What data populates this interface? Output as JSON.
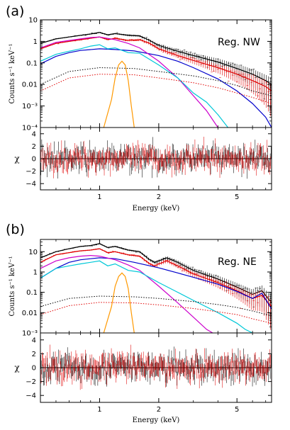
{
  "chart_data": [
    {
      "panel_label": "(a)",
      "region_label": "Reg. NW",
      "type": "line",
      "xlabel": "Energy (keV)",
      "ylabel": "Counts s⁻¹ keV⁻¹",
      "resid_ylabel": "χ",
      "xscale": "log",
      "yscale": "log",
      "xlim": [
        0.5,
        7.5
      ],
      "ylim": [
        0.0001,
        10
      ],
      "x_ticks": [
        1,
        2,
        5
      ],
      "x_tick_labels": [
        "1",
        "2",
        "5"
      ],
      "y_ticks": [
        10,
        1,
        0.1,
        0.01,
        0.001,
        0.0001
      ],
      "y_tick_labels": [
        "10",
        "1",
        "0.1",
        "0.01",
        "10⁻³",
        "10⁻⁴"
      ],
      "resid_ylim": [
        -5,
        5
      ],
      "resid_ticks": [
        4,
        2,
        0,
        -2,
        -4
      ],
      "resid_tick_labels": [
        "4",
        "2",
        "0",
        "−2",
        "−4"
      ],
      "series": [
        {
          "color": "#000000",
          "style": "solid",
          "x": [
            0.5,
            0.6,
            0.7,
            0.8,
            0.9,
            1.0,
            1.1,
            1.2,
            1.4,
            1.6,
            1.8,
            2.0,
            2.5,
            3.0,
            4.0,
            5.0,
            6.0,
            7.0,
            7.5
          ],
          "y": [
            0.8,
            1.3,
            1.6,
            1.9,
            2.2,
            2.6,
            2.0,
            2.3,
            1.9,
            1.8,
            1.1,
            0.65,
            0.35,
            0.22,
            0.11,
            0.055,
            0.03,
            0.015,
            0.01
          ]
        },
        {
          "color": "#e00000",
          "style": "solid",
          "x": [
            0.5,
            0.6,
            0.7,
            0.8,
            0.9,
            1.0,
            1.1,
            1.2,
            1.4,
            1.6,
            1.8,
            2.0,
            2.5,
            3.0,
            4.0,
            5.0,
            6.0,
            7.0,
            7.5
          ],
          "y": [
            0.45,
            0.8,
            1.0,
            1.2,
            1.4,
            1.6,
            1.2,
            1.4,
            1.1,
            1.2,
            0.8,
            0.45,
            0.22,
            0.13,
            0.06,
            0.03,
            0.015,
            0.008,
            0.005
          ]
        },
        {
          "color": "#0000cc",
          "style": "solid",
          "x": [
            0.5,
            0.6,
            0.7,
            0.8,
            1.0,
            1.2,
            1.5,
            2.0,
            2.5,
            3.0,
            4.0,
            5.0,
            6.0,
            7.0,
            7.5
          ],
          "y": [
            0.09,
            0.2,
            0.3,
            0.38,
            0.45,
            0.42,
            0.36,
            0.22,
            0.12,
            0.06,
            0.018,
            0.005,
            0.0013,
            0.0003,
            0.0001
          ]
        },
        {
          "color": "#cc00cc",
          "style": "solid",
          "x": [
            0.5,
            0.6,
            0.7,
            0.8,
            0.9,
            1.0,
            1.2,
            1.4,
            1.6,
            2.0,
            2.5,
            3.0,
            3.5,
            4.0
          ],
          "y": [
            0.5,
            0.9,
            1.1,
            1.3,
            1.5,
            1.6,
            1.2,
            0.8,
            0.5,
            0.12,
            0.02,
            0.003,
            0.0006,
            0.0001
          ]
        },
        {
          "color": "#00c8d8",
          "style": "solid",
          "x": [
            0.5,
            0.6,
            0.7,
            0.8,
            0.9,
            1.0,
            1.1,
            1.2,
            1.4,
            1.6,
            2.0,
            2.5,
            3.0,
            3.5,
            4.0,
            4.5
          ],
          "y": [
            0.12,
            0.25,
            0.35,
            0.45,
            0.6,
            0.7,
            0.45,
            0.5,
            0.3,
            0.28,
            0.08,
            0.02,
            0.004,
            0.0015,
            0.0004,
            0.0001
          ]
        },
        {
          "color": "#000000",
          "style": "dotted",
          "x": [
            0.5,
            0.7,
            1.0,
            1.5,
            2.0,
            3.0,
            4.0,
            5.0,
            6.0,
            7.5
          ],
          "y": [
            0.01,
            0.04,
            0.06,
            0.055,
            0.04,
            0.025,
            0.015,
            0.009,
            0.005,
            0.003
          ]
        },
        {
          "color": "#e00000",
          "style": "dotted",
          "x": [
            0.5,
            0.7,
            1.0,
            1.5,
            2.0,
            3.0,
            4.0,
            5.0,
            6.0,
            7.5
          ],
          "y": [
            0.005,
            0.02,
            0.03,
            0.028,
            0.02,
            0.012,
            0.007,
            0.004,
            0.0025,
            0.0013
          ]
        },
        {
          "color": "#ff9900",
          "style": "solid",
          "x": [
            1.05,
            1.15,
            1.2,
            1.25,
            1.3,
            1.35,
            1.4,
            1.45,
            1.5
          ],
          "y": [
            0.0001,
            0.002,
            0.02,
            0.08,
            0.12,
            0.08,
            0.015,
            0.001,
            0.0001
          ]
        }
      ]
    },
    {
      "panel_label": "(b)",
      "region_label": "Reg. NE",
      "type": "line",
      "xlabel": "Energy (keV)",
      "ylabel": "Counts s⁻¹ keV⁻¹",
      "resid_ylabel": "χ",
      "xscale": "log",
      "yscale": "log",
      "xlim": [
        0.5,
        7.5
      ],
      "ylim": [
        0.001,
        40
      ],
      "x_ticks": [
        1,
        2,
        5
      ],
      "x_tick_labels": [
        "1",
        "2",
        "5"
      ],
      "y_ticks": [
        10,
        1,
        0.1,
        0.01,
        0.001
      ],
      "y_tick_labels": [
        "10",
        "1",
        "0.1",
        "0.01",
        "10⁻³"
      ],
      "resid_ylim": [
        -5,
        5
      ],
      "resid_ticks": [
        4,
        2,
        0,
        -2,
        -4
      ],
      "resid_tick_labels": [
        "4",
        "2",
        "0",
        "−2",
        "−4"
      ],
      "series": [
        {
          "color": "#000000",
          "style": "solid",
          "x": [
            0.5,
            0.6,
            0.7,
            0.8,
            0.9,
            1.0,
            1.1,
            1.2,
            1.4,
            1.6,
            1.8,
            1.9,
            2.0,
            2.2,
            2.5,
            3.0,
            4.0,
            5.0,
            6.0,
            6.7,
            7.5
          ],
          "y": [
            5,
            10,
            14,
            18,
            20,
            25,
            16,
            18,
            12,
            10,
            4,
            3,
            3.5,
            5,
            3,
            1.2,
            0.45,
            0.18,
            0.08,
            0.12,
            0.03
          ]
        },
        {
          "color": "#e00000",
          "style": "solid",
          "x": [
            0.5,
            0.6,
            0.7,
            0.8,
            0.9,
            1.0,
            1.1,
            1.2,
            1.4,
            1.6,
            1.8,
            1.9,
            2.0,
            2.2,
            2.5,
            3.0,
            4.0,
            5.0,
            6.0,
            6.7,
            7.5
          ],
          "y": [
            3,
            7,
            9,
            11,
            12,
            14,
            9,
            10,
            7,
            6,
            2.5,
            2.0,
            2.5,
            3.5,
            2,
            0.8,
            0.3,
            0.12,
            0.05,
            0.07,
            0.02
          ]
        },
        {
          "color": "#0000cc",
          "style": "solid",
          "x": [
            0.5,
            0.6,
            0.7,
            0.8,
            1.0,
            1.2,
            1.5,
            2.0,
            2.5,
            3.0,
            4.0,
            5.0,
            6.0,
            6.7,
            7.5
          ],
          "y": [
            0.5,
            1.5,
            3,
            4,
            5,
            4.5,
            3,
            1.6,
            0.9,
            0.55,
            0.25,
            0.11,
            0.05,
            0.09,
            0.015
          ]
        },
        {
          "color": "#cc00cc",
          "style": "solid",
          "x": [
            0.5,
            0.6,
            0.7,
            0.8,
            0.9,
            1.0,
            1.2,
            1.4,
            1.6,
            2.0,
            2.5,
            3.0,
            3.5,
            4.0
          ],
          "y": [
            1.5,
            3.5,
            5,
            6,
            6.5,
            6,
            4,
            2.2,
            1.2,
            0.2,
            0.03,
            0.006,
            0.0015,
            0.0007
          ]
        },
        {
          "color": "#00c8d8",
          "style": "solid",
          "x": [
            0.5,
            0.6,
            0.7,
            0.8,
            0.9,
            1.0,
            1.1,
            1.2,
            1.4,
            1.6,
            2.0,
            2.5,
            3.0,
            4.0,
            5.0,
            5.5,
            6.0
          ],
          "y": [
            0.5,
            1.5,
            2,
            2.5,
            3,
            3.5,
            2,
            2.5,
            1.2,
            1.0,
            0.3,
            0.1,
            0.04,
            0.01,
            0.003,
            0.0015,
            0.001
          ]
        },
        {
          "color": "#000000",
          "style": "dotted",
          "x": [
            0.5,
            0.7,
            1.0,
            1.5,
            2.0,
            3.0,
            4.0,
            5.0,
            6.0,
            7.5
          ],
          "y": [
            0.02,
            0.05,
            0.065,
            0.06,
            0.05,
            0.035,
            0.025,
            0.018,
            0.012,
            0.007
          ]
        },
        {
          "color": "#e00000",
          "style": "dotted",
          "x": [
            0.5,
            0.7,
            1.0,
            1.5,
            2.0,
            3.0,
            4.0,
            5.0,
            6.0,
            7.5
          ],
          "y": [
            0.008,
            0.022,
            0.032,
            0.03,
            0.024,
            0.016,
            0.011,
            0.008,
            0.005,
            0.003
          ]
        },
        {
          "color": "#ff9900",
          "style": "solid",
          "x": [
            1.05,
            1.15,
            1.2,
            1.25,
            1.3,
            1.35,
            1.4,
            1.45,
            1.5
          ],
          "y": [
            0.001,
            0.02,
            0.2,
            0.6,
            0.9,
            0.6,
            0.15,
            0.01,
            0.001
          ]
        }
      ]
    }
  ]
}
